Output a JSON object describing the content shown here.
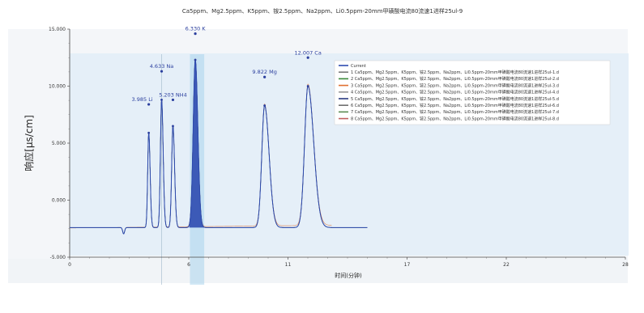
{
  "chart_data": {
    "type": "line",
    "title": "Ca5ppm、Mg2.5ppm、K5ppm、铵2.5ppm、Na2ppm、Li0.5ppm-20mm甲磺酸电流80流速1进样25ul-9",
    "xlabel": "时间(分钟)",
    "ylabel": "响应[µs/cm]",
    "xlim": [
      0,
      28
    ],
    "ylim": [
      -5,
      15
    ],
    "x_ticks": [
      "0",
      "6",
      "11",
      "17",
      "22",
      "28"
    ],
    "y_ticks": [
      "-5.000",
      "0.000",
      "5.000",
      "10.000",
      "15.000"
    ],
    "peaks": [
      {
        "label": "3.985 Li",
        "time": 3.985,
        "height": 5.9
      },
      {
        "label": "4.633 Na",
        "time": 4.633,
        "height": 8.8
      },
      {
        "label": "5.203 NH4",
        "time": 5.203,
        "height": 6.5
      },
      {
        "label": "6.330 K",
        "time": 6.33,
        "height": 12.3
      },
      {
        "label": "9.822 Mg",
        "time": 9.822,
        "height": 8.3
      },
      {
        "label": "12.007 Ca",
        "time": 12.007,
        "height": 10.0
      }
    ],
    "baseline": -2.4,
    "legend_position": "right",
    "series": [
      {
        "name": "Current",
        "color": "#2e4bb0"
      },
      {
        "name": "1 Ca5ppm、Mg2.5ppm、K5ppm、铵2.5ppm、Na2ppm、Li0.5ppm-20mm甲磺酸电流80流速1进样25ul-1.d",
        "color": "#7a7a7a"
      },
      {
        "name": "2 Ca5ppm、Mg2.5ppm、K5ppm、铵2.5ppm、Na2ppm、Li0.5ppm-20mm甲磺酸电流80流速1进样25ul-2.d",
        "color": "#3a8a3a"
      },
      {
        "name": "3 Ca5ppm、Mg2.5ppm、K5ppm、铵2.5ppm、Na2ppm、Li0.5ppm-20mm甲磺酸电流80流速1进样25ul-3.d",
        "color": "#e07030"
      },
      {
        "name": "4 Ca5ppm、Mg2.5ppm、K5ppm、铵2.5ppm、Na2ppm、Li0.5ppm-20mm甲磺酸电流80流速1进样25ul-4.d",
        "color": "#9a9a9a"
      },
      {
        "name": "5 Ca5ppm、Mg2.5ppm、K5ppm、铵2.5ppm、Na2ppm、Li0.5ppm-20mm甲磺酸电流80流速1进样25ul-5.d",
        "color": "#2a3a80"
      },
      {
        "name": "6 Ca5ppm、Mg2.5ppm、K5ppm、铵2.5ppm、Na2ppm、Li0.5ppm-20mm甲磺酸电流80流速1进样25ul-6.d",
        "color": "#707070"
      },
      {
        "name": "7 Ca5ppm、Mg2.5ppm、K5ppm、铵2.5ppm、Na2ppm、Li0.5ppm-20mm甲磺酸电流80流速1进样25ul-7.d",
        "color": "#5a8a50"
      },
      {
        "name": "8 Ca5ppm、Mg2.5ppm、K5ppm、铵2.5ppm、Na2ppm、Li0.5ppm-20mm甲磺酸电流80流速1进样25ul-8.d",
        "color": "#c06060"
      }
    ],
    "grid": false
  }
}
